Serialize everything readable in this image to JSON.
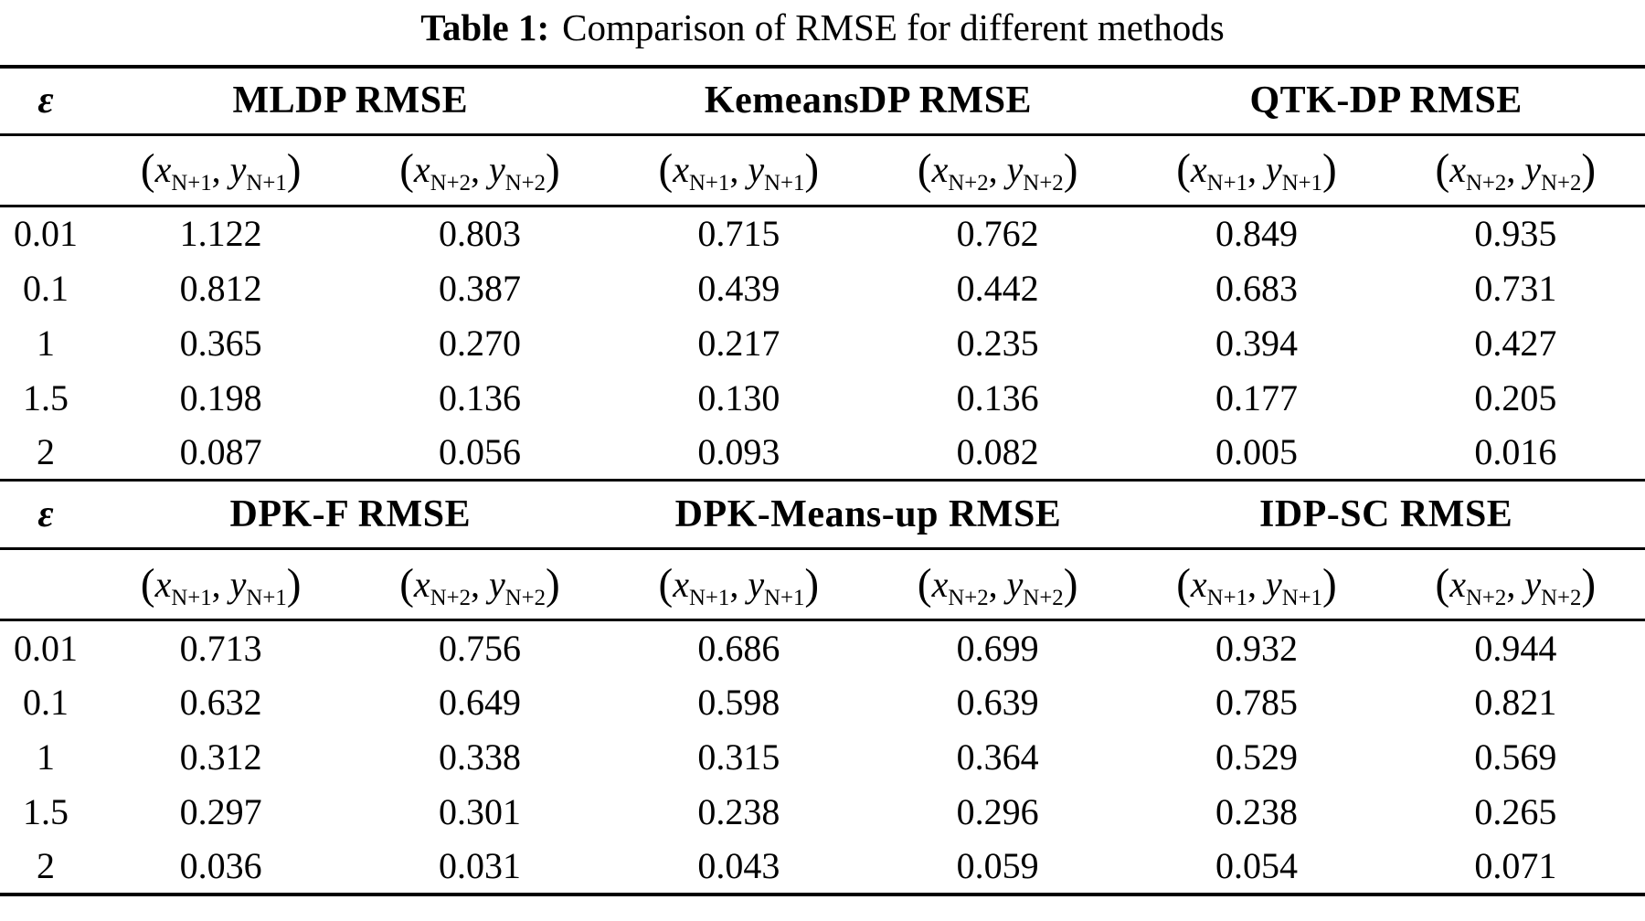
{
  "caption": {
    "label": "Table 1:",
    "text": "Comparison of RMSE for different methods"
  },
  "columns": {
    "epsilon_symbol": "ε",
    "x_var": "x",
    "y_var": "y"
  },
  "subcolumn_pairs": [
    {
      "x_sub": "N+1",
      "y_sub": "N+1"
    },
    {
      "x_sub": "N+2",
      "y_sub": "N+2"
    },
    {
      "x_sub": "N+1",
      "y_sub": "N+1"
    },
    {
      "x_sub": "N+2",
      "y_sub": "N+2"
    },
    {
      "x_sub": "N+1",
      "y_sub": "N+1"
    },
    {
      "x_sub": "N+2",
      "y_sub": "N+2"
    }
  ],
  "sections": [
    {
      "methods": [
        "MLDP RMSE",
        "KemeansDP RMSE",
        "QTK-DP RMSE"
      ],
      "rows": [
        {
          "epsilon": "0.01",
          "values": [
            "1.122",
            "0.803",
            "0.715",
            "0.762",
            "0.849",
            "0.935"
          ]
        },
        {
          "epsilon": "0.1",
          "values": [
            "0.812",
            "0.387",
            "0.439",
            "0.442",
            "0.683",
            "0.731"
          ]
        },
        {
          "epsilon": "1",
          "values": [
            "0.365",
            "0.270",
            "0.217",
            "0.235",
            "0.394",
            "0.427"
          ]
        },
        {
          "epsilon": "1.5",
          "values": [
            "0.198",
            "0.136",
            "0.130",
            "0.136",
            "0.177",
            "0.205"
          ]
        },
        {
          "epsilon": "2",
          "values": [
            "0.087",
            "0.056",
            "0.093",
            "0.082",
            "0.005",
            "0.016"
          ]
        }
      ]
    },
    {
      "methods": [
        "DPK-F RMSE",
        "DPK-Means-up RMSE",
        "IDP-SC RMSE"
      ],
      "rows": [
        {
          "epsilon": "0.01",
          "values": [
            "0.713",
            "0.756",
            "0.686",
            "0.699",
            "0.932",
            "0.944"
          ]
        },
        {
          "epsilon": "0.1",
          "values": [
            "0.632",
            "0.649",
            "0.598",
            "0.639",
            "0.785",
            "0.821"
          ]
        },
        {
          "epsilon": "1",
          "values": [
            "0.312",
            "0.338",
            "0.315",
            "0.364",
            "0.529",
            "0.569"
          ]
        },
        {
          "epsilon": "1.5",
          "values": [
            "0.297",
            "0.301",
            "0.238",
            "0.296",
            "0.238",
            "0.265"
          ]
        },
        {
          "epsilon": "2",
          "values": [
            "0.036",
            "0.031",
            "0.043",
            "0.059",
            "0.054",
            "0.071"
          ]
        }
      ]
    }
  ]
}
